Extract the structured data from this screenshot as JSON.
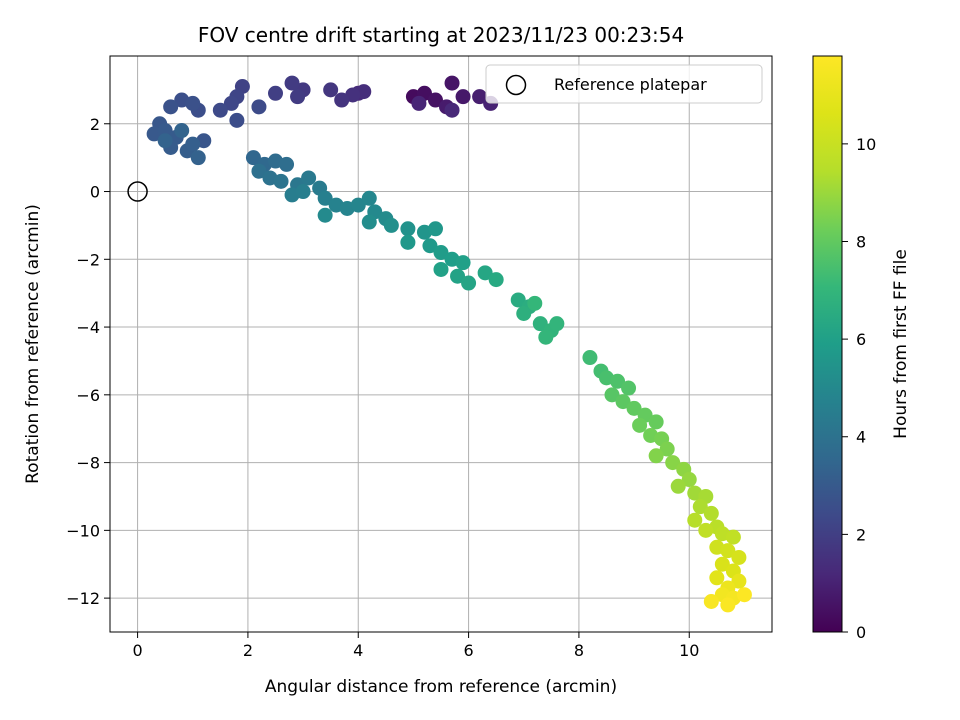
{
  "chart_data": {
    "type": "scatter",
    "title": "FOV centre drift starting at 2023/11/23 00:23:54",
    "xlabel": "Angular distance from reference (arcmin)",
    "ylabel": "Rotation from reference (arcmin)",
    "xlim": [
      -0.5,
      11.5
    ],
    "ylim": [
      -13.0,
      4.0
    ],
    "x_ticks": [
      0,
      2,
      4,
      6,
      8,
      10
    ],
    "y_ticks": [
      2,
      0,
      -2,
      -4,
      -6,
      -8,
      -10,
      -12
    ],
    "grid": true,
    "legend": {
      "placement": "top-right",
      "entries": [
        "Reference platepar"
      ]
    },
    "reference_point": {
      "x": 0,
      "y": 0
    },
    "colorbar": {
      "label": "Hours from first FF file",
      "range": [
        0,
        11.8
      ],
      "ticks": [
        0,
        2,
        4,
        6,
        8,
        10
      ],
      "colormap": "viridis"
    },
    "series": [
      {
        "points": [
          [
            5.0,
            2.8,
            0.3
          ],
          [
            5.2,
            2.9,
            0.4
          ],
          [
            5.4,
            2.7,
            0.5
          ],
          [
            5.7,
            3.2,
            0.6
          ],
          [
            5.9,
            2.8,
            0.7
          ],
          [
            5.6,
            2.5,
            0.8
          ],
          [
            6.2,
            2.8,
            0.9
          ],
          [
            6.4,
            2.6,
            1.0
          ],
          [
            5.1,
            2.6,
            1.1
          ],
          [
            5.7,
            2.4,
            1.2
          ],
          [
            4.0,
            2.9,
            1.3
          ],
          [
            4.1,
            2.95,
            1.4
          ],
          [
            3.9,
            2.85,
            1.5
          ],
          [
            3.7,
            2.7,
            1.6
          ],
          [
            3.5,
            3.0,
            1.7
          ],
          [
            3.0,
            3.0,
            1.8
          ],
          [
            2.8,
            3.2,
            1.85
          ],
          [
            2.9,
            2.8,
            1.9
          ],
          [
            2.5,
            2.9,
            2.0
          ],
          [
            1.9,
            3.1,
            2.1
          ],
          [
            1.8,
            2.8,
            2.2
          ],
          [
            1.7,
            2.6,
            2.3
          ],
          [
            1.5,
            2.4,
            2.4
          ],
          [
            2.2,
            2.5,
            2.45
          ],
          [
            1.8,
            2.1,
            2.5
          ],
          [
            1.1,
            2.4,
            2.55
          ],
          [
            0.8,
            2.7,
            2.6
          ],
          [
            1.0,
            2.6,
            2.65
          ],
          [
            0.6,
            2.5,
            2.7
          ],
          [
            1.2,
            1.5,
            2.8
          ],
          [
            0.4,
            2.0,
            2.9
          ],
          [
            0.3,
            1.7,
            2.95
          ],
          [
            0.5,
            1.8,
            3.0
          ],
          [
            0.7,
            1.6,
            3.05
          ],
          [
            0.6,
            1.3,
            3.1
          ],
          [
            0.9,
            1.2,
            3.15
          ],
          [
            1.0,
            1.4,
            3.2
          ],
          [
            1.1,
            1.0,
            3.3
          ],
          [
            0.5,
            1.5,
            3.35
          ],
          [
            0.8,
            1.8,
            3.4
          ]
        ]
      },
      {
        "points": [
          [
            2.1,
            1.0,
            3.5
          ],
          [
            2.3,
            0.8,
            3.6
          ],
          [
            2.5,
            0.9,
            3.7
          ],
          [
            2.7,
            0.8,
            3.8
          ],
          [
            2.2,
            0.6,
            3.9
          ],
          [
            2.4,
            0.4,
            4.0
          ],
          [
            2.6,
            0.3,
            4.1
          ],
          [
            2.9,
            0.2,
            4.2
          ],
          [
            3.1,
            0.4,
            4.3
          ],
          [
            3.3,
            0.1,
            4.4
          ],
          [
            2.8,
            -0.1,
            4.5
          ],
          [
            3.0,
            0.0,
            4.55
          ],
          [
            3.4,
            -0.2,
            4.6
          ],
          [
            3.6,
            -0.4,
            4.7
          ],
          [
            3.8,
            -0.5,
            4.8
          ],
          [
            4.0,
            -0.4,
            4.85
          ],
          [
            4.2,
            -0.2,
            4.9
          ],
          [
            4.3,
            -0.6,
            5.0
          ],
          [
            3.4,
            -0.7,
            5.05
          ],
          [
            4.5,
            -0.8,
            5.1
          ],
          [
            4.2,
            -0.9,
            5.2
          ],
          [
            4.6,
            -1.0,
            5.3
          ],
          [
            4.9,
            -1.1,
            5.4
          ],
          [
            5.2,
            -1.2,
            5.5
          ],
          [
            5.4,
            -1.1,
            5.6
          ],
          [
            4.9,
            -1.5,
            5.65
          ],
          [
            5.3,
            -1.6,
            5.7
          ],
          [
            5.5,
            -1.8,
            5.8
          ],
          [
            5.7,
            -2.0,
            5.9
          ],
          [
            5.9,
            -2.1,
            6.0
          ],
          [
            5.5,
            -2.3,
            6.05
          ],
          [
            5.8,
            -2.5,
            6.1
          ],
          [
            6.0,
            -2.7,
            6.2
          ],
          [
            6.3,
            -2.4,
            6.3
          ],
          [
            6.5,
            -2.6,
            6.4
          ],
          [
            6.9,
            -3.2,
            6.5
          ],
          [
            7.1,
            -3.4,
            6.6
          ],
          [
            7.0,
            -3.6,
            6.7
          ],
          [
            7.3,
            -3.9,
            6.8
          ],
          [
            7.5,
            -4.1,
            6.9
          ],
          [
            7.6,
            -3.9,
            6.95
          ],
          [
            7.4,
            -4.3,
            7.0
          ],
          [
            7.2,
            -3.3,
            7.05
          ]
        ]
      },
      {
        "points": [
          [
            8.2,
            -4.9,
            7.3
          ],
          [
            8.4,
            -5.3,
            7.4
          ],
          [
            8.5,
            -5.5,
            7.5
          ],
          [
            8.7,
            -5.6,
            7.6
          ],
          [
            8.9,
            -5.8,
            7.7
          ],
          [
            8.6,
            -6.0,
            7.8
          ],
          [
            8.8,
            -6.2,
            7.9
          ],
          [
            9.0,
            -6.4,
            8.0
          ],
          [
            9.2,
            -6.6,
            8.05
          ],
          [
            9.4,
            -6.8,
            8.1
          ],
          [
            9.1,
            -6.9,
            8.2
          ],
          [
            9.3,
            -7.2,
            8.3
          ],
          [
            9.5,
            -7.3,
            8.4
          ],
          [
            9.6,
            -7.6,
            8.5
          ],
          [
            9.4,
            -7.8,
            8.6
          ],
          [
            9.7,
            -8.0,
            8.7
          ],
          [
            9.9,
            -8.2,
            8.8
          ],
          [
            10.0,
            -8.5,
            8.9
          ],
          [
            9.8,
            -8.7,
            9.0
          ],
          [
            10.1,
            -8.9,
            9.1
          ],
          [
            10.3,
            -9.0,
            9.2
          ],
          [
            10.2,
            -9.3,
            9.3
          ],
          [
            10.4,
            -9.5,
            9.4
          ],
          [
            10.1,
            -9.7,
            9.5
          ],
          [
            10.5,
            -9.9,
            9.6
          ],
          [
            10.6,
            -10.1,
            9.7
          ],
          [
            10.3,
            -10.0,
            9.75
          ],
          [
            10.8,
            -10.2,
            9.8
          ]
        ]
      },
      {
        "points": [
          [
            10.5,
            -10.5,
            10.2
          ],
          [
            10.7,
            -10.6,
            10.3
          ],
          [
            10.9,
            -10.8,
            10.4
          ],
          [
            10.6,
            -11.0,
            10.5
          ],
          [
            10.8,
            -11.2,
            10.6
          ],
          [
            10.5,
            -11.4,
            10.8
          ],
          [
            10.9,
            -11.5,
            11.0
          ],
          [
            10.7,
            -11.7,
            11.2
          ],
          [
            10.6,
            -11.9,
            11.4
          ],
          [
            10.8,
            -12.0,
            11.5
          ],
          [
            10.4,
            -12.1,
            11.6
          ],
          [
            10.7,
            -12.2,
            11.7
          ],
          [
            11.0,
            -11.9,
            11.75
          ]
        ]
      }
    ]
  }
}
